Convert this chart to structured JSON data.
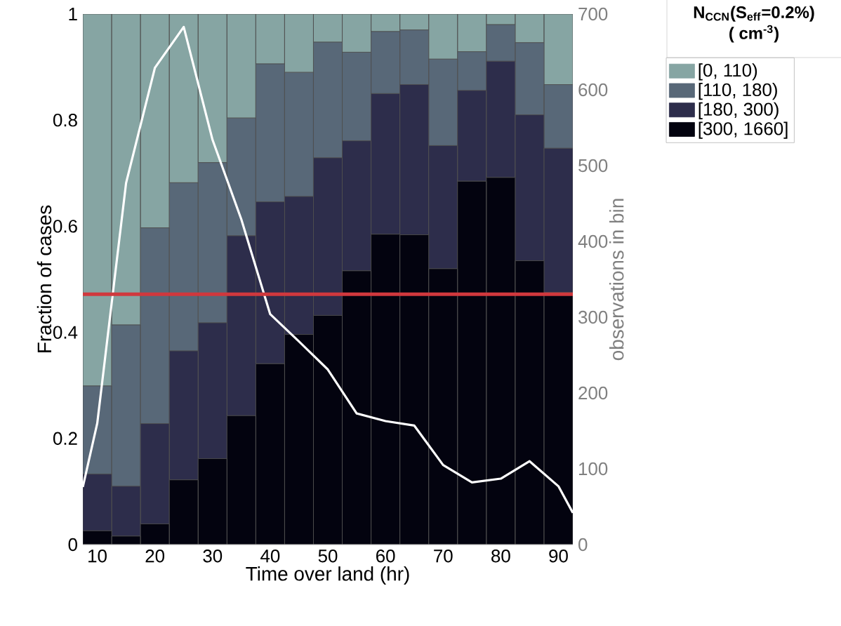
{
  "chart_data": {
    "type": "bar",
    "stacked": true,
    "xlabel": "Time over land (hr)",
    "ylabel": "Fraction of cases",
    "y2label": "observations in bin",
    "legend_title": "**N$_{CCN}$(S$_{eff}$=0.2%)** **( cm$^{-3}$)**",
    "x": [
      10,
      15,
      20,
      25,
      30,
      35,
      40,
      45,
      50,
      55,
      60,
      65,
      70,
      75,
      80,
      85,
      90
    ],
    "xlim": [
      7.5,
      92.5
    ],
    "xticks": [
      10,
      20,
      30,
      40,
      50,
      60,
      70,
      80,
      90
    ],
    "ylim": [
      0,
      1
    ],
    "yticks": [
      0,
      0.2,
      0.4,
      0.6,
      0.8,
      1
    ],
    "y2lim": [
      0,
      700
    ],
    "y2ticks": [
      0,
      100,
      200,
      300,
      400,
      500,
      600,
      700
    ],
    "legend": "top right",
    "grid": false,
    "series": [
      {
        "name": "[300, 1660]",
        "color": "#03030f",
        "values": [
          0.026,
          0.016,
          0.039,
          0.122,
          0.162,
          0.243,
          0.341,
          0.396,
          0.432,
          0.516,
          0.585,
          0.584,
          0.52,
          0.685,
          0.692,
          0.535,
          0.475
        ]
      },
      {
        "name": "[180, 300)",
        "color": "#2d2d4b",
        "values": [
          0.107,
          0.094,
          0.189,
          0.243,
          0.256,
          0.339,
          0.305,
          0.26,
          0.297,
          0.245,
          0.265,
          0.283,
          0.232,
          0.171,
          0.219,
          0.275,
          0.272
        ]
      },
      {
        "name": "[110, 180)",
        "color": "#586878",
        "values": [
          0.166,
          0.304,
          0.369,
          0.317,
          0.302,
          0.222,
          0.26,
          0.234,
          0.218,
          0.167,
          0.117,
          0.103,
          0.163,
          0.073,
          0.069,
          0.136,
          0.12
        ]
      },
      {
        "name": "[0, 110)",
        "color": "#86a5a3",
        "values": [
          0.701,
          0.586,
          0.403,
          0.318,
          0.28,
          0.196,
          0.094,
          0.11,
          0.053,
          0.072,
          0.033,
          0.03,
          0.085,
          0.071,
          0.02,
          0.054,
          0.133
        ]
      },
      {
        "type": "line",
        "axis": "y2",
        "color": "#ffffff",
        "x": [
          7.5,
          10,
          15,
          20,
          25,
          30,
          35,
          40,
          45,
          50,
          55,
          60,
          65,
          70,
          75,
          80,
          85,
          90,
          92.5
        ],
        "values": [
          76,
          160,
          477,
          629,
          683,
          534,
          429,
          304,
          268,
          231,
          173,
          163,
          157,
          105,
          82,
          87,
          110,
          77,
          42
        ]
      }
    ],
    "ref_lines": [
      {
        "axis": "y",
        "value": 0.472,
        "color": "#d0383d"
      }
    ]
  }
}
